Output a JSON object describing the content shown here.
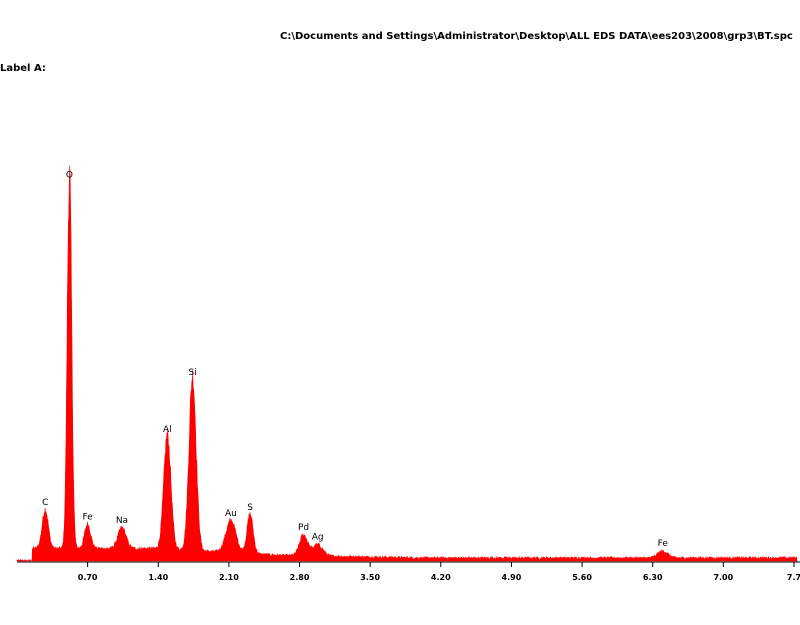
{
  "header": {
    "file_path": "C:\\Documents and Settings\\Administrator\\Desktop\\ALL EDS DATA\\ees203\\2008\\grp3\\BT.spc",
    "label": "Label A:"
  },
  "chart_data": {
    "type": "area",
    "color": "#ff0000",
    "xlim": [
      0.0,
      7.73
    ],
    "ylim": [
      0,
      100
    ],
    "x_ticks": [
      0.7,
      1.4,
      2.1,
      2.8,
      3.5,
      4.2,
      4.9,
      5.6,
      6.3,
      7.0,
      7.7
    ],
    "x_tick_labels": [
      "0.70",
      "1.40",
      "2.10",
      "2.80",
      "3.50",
      "4.20",
      "4.90",
      "5.60",
      "6.30",
      "7.00",
      "7.7"
    ],
    "peaks": [
      {
        "label": "C",
        "energy": 0.28,
        "height": 10.5,
        "width": 0.03
      },
      {
        "label": "O",
        "energy": 0.52,
        "height": 100,
        "width": 0.022
      },
      {
        "label": "Fe",
        "energy": 0.7,
        "height": 6.5,
        "width": 0.03
      },
      {
        "label": "Na",
        "energy": 1.04,
        "height": 5.5,
        "width": 0.04
      },
      {
        "label": "Al",
        "energy": 1.49,
        "height": 30.5,
        "width": 0.035
      },
      {
        "label": "Si",
        "energy": 1.74,
        "height": 46.5,
        "width": 0.035
      },
      {
        "label": "Au",
        "energy": 2.12,
        "height": 8.5,
        "width": 0.05
      },
      {
        "label": "S",
        "energy": 2.31,
        "height": 10.5,
        "width": 0.03
      },
      {
        "label": "Pd",
        "energy": 2.84,
        "height": 5.5,
        "width": 0.04
      },
      {
        "label": "Ag",
        "energy": 2.98,
        "height": 3.0,
        "width": 0.05
      },
      {
        "label": "Fe",
        "energy": 6.4,
        "height": 1.8,
        "width": 0.05
      }
    ]
  }
}
